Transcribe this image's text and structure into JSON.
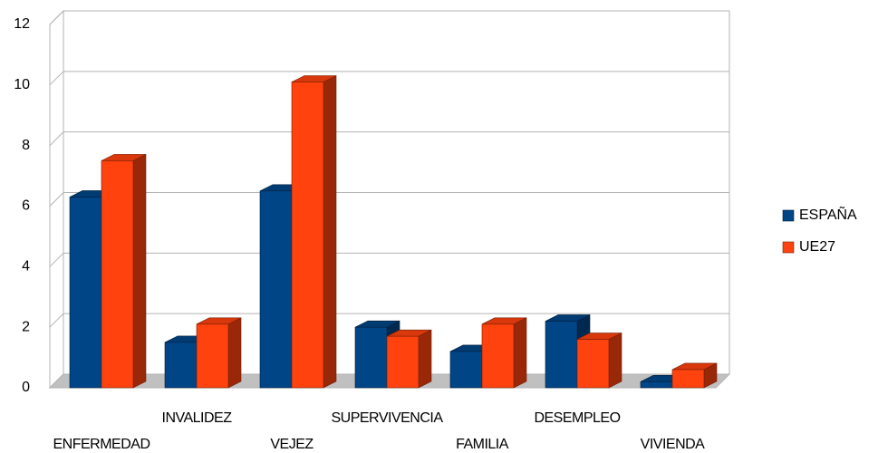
{
  "chart_data": {
    "type": "bar3d",
    "categories": [
      "ENFERMEDAD",
      "INVALIDEZ",
      "VEJEZ",
      "SUPERVIVENCIA",
      "FAMILIA",
      "DESEMPLEO",
      "VIVIENDA"
    ],
    "series": [
      {
        "name": "ESPAÑA",
        "color": "#004586",
        "values": [
          6.3,
          1.5,
          6.5,
          2.0,
          1.2,
          2.2,
          0.2
        ]
      },
      {
        "name": "UE27",
        "color": "#ff420e",
        "values": [
          7.5,
          2.1,
          10.1,
          1.7,
          2.1,
          1.6,
          0.6
        ]
      }
    ],
    "ylim": [
      0,
      12
    ],
    "yticks": [
      0,
      2,
      4,
      6,
      8,
      10,
      12
    ],
    "grid": true,
    "legend": "right"
  }
}
